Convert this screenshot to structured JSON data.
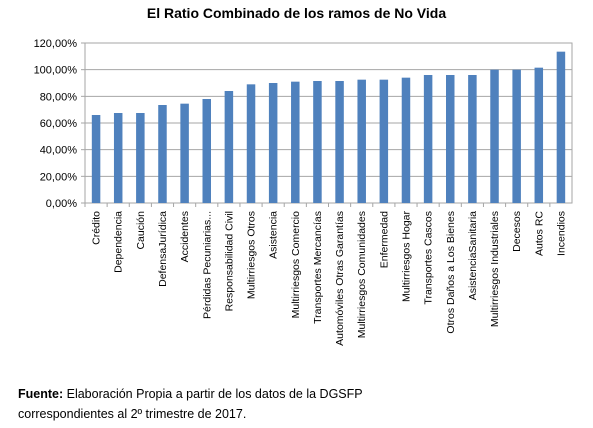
{
  "chart_data": {
    "type": "bar",
    "title": "El Ratio Combinado de los ramos de No Vida",
    "categories": [
      "Crédito",
      "Dependencia",
      "Caución",
      "DefensaJurídica",
      "Accidentes",
      "Pérdidas Pecuniarias...",
      "Responsabilidad Civil",
      "Multirriesgos Otros",
      "Asistencia",
      "Multirriesgos Comercio",
      "Transportes Mercancías",
      "Automóviles Otras Garantías",
      "Multirriesgos Comunidades",
      "Enfermedad",
      "Multirriesgos Hogar",
      "Transportes Cascos",
      "Otros Daños a Los Bienes",
      "AsistenciaSanitaria",
      "Multirriesgos Industriales",
      "Decesos",
      "Autos RC",
      "Incendios"
    ],
    "values": [
      66,
      67.5,
      67.5,
      73.5,
      74.5,
      78,
      84,
      89,
      90,
      91,
      91.5,
      91.5,
      92.5,
      92.5,
      94,
      96,
      96,
      96,
      100,
      100,
      101.5,
      113.5
    ],
    "ylim": [
      0,
      120
    ],
    "yticks": [
      "0,00%",
      "20,00%",
      "40,00%",
      "60,00%",
      "80,00%",
      "100,00%",
      "120,00%"
    ],
    "ytick_values": [
      0,
      20,
      40,
      60,
      80,
      100,
      120
    ],
    "grid": true,
    "bar_color": "#4f81bd",
    "grid_color": "#a6a6a6"
  },
  "source": {
    "label": "Fuente:",
    "line1": " Elaboración Propia a partir de los datos de la DGSFP",
    "line2": "correspondientes al 2º trimestre de 2017."
  }
}
